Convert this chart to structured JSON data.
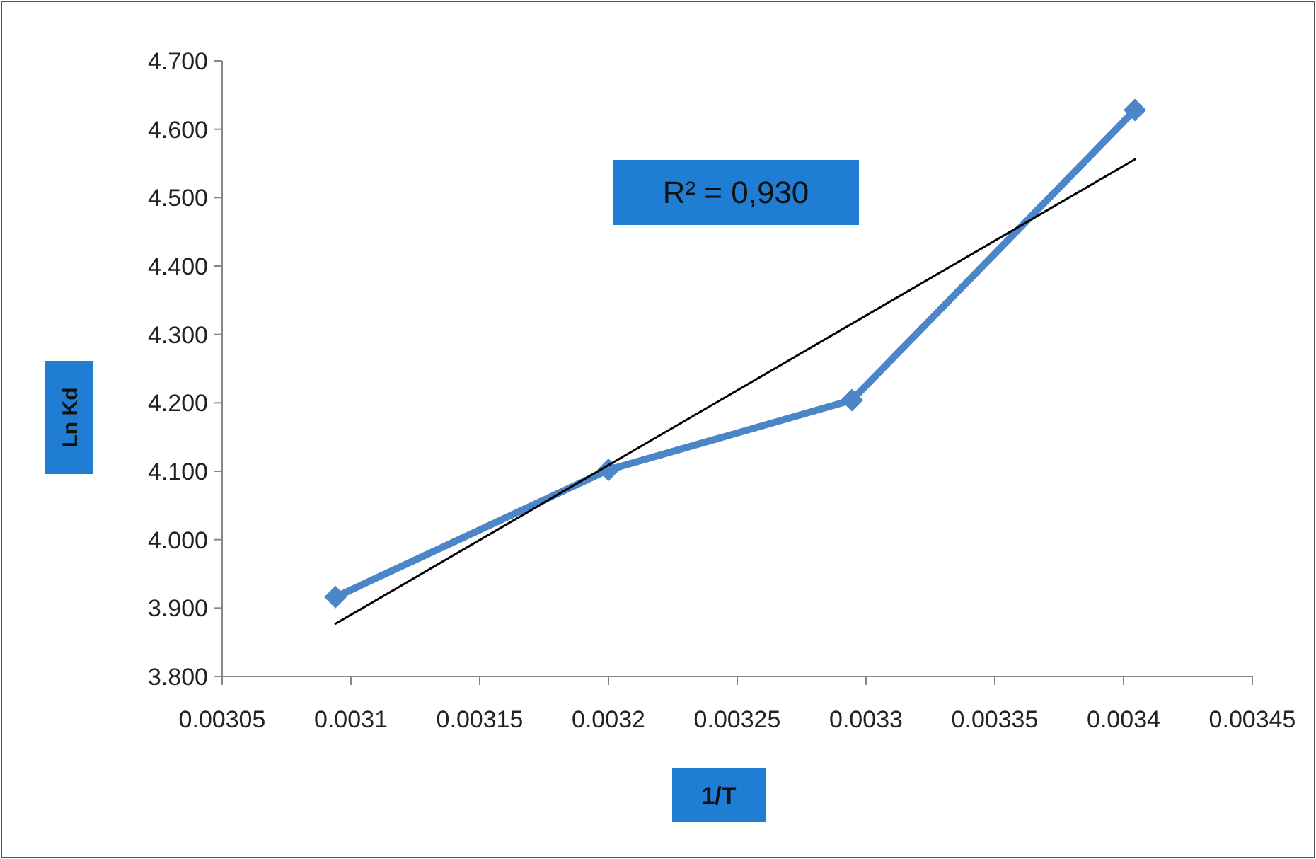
{
  "chart_data": {
    "type": "line",
    "xlabel": "1/T",
    "ylabel": "Ln Kd",
    "xlim": [
      0.00305,
      0.00345
    ],
    "xticks": [
      0.00305,
      0.0031,
      0.00315,
      0.0032,
      0.00325,
      0.0033,
      0.00335,
      0.0034,
      0.00345
    ],
    "ylim": [
      3.8,
      4.7
    ],
    "yticks": [
      {
        "value": 3.8,
        "label": "3.800"
      },
      {
        "value": 3.9,
        "label": "3.900"
      },
      {
        "value": 4.0,
        "label": "4.000"
      },
      {
        "value": 4.1,
        "label": "4.100"
      },
      {
        "value": 4.2,
        "label": "4.200"
      },
      {
        "value": 4.3,
        "label": "4.300"
      },
      {
        "value": 4.4,
        "label": "4.400"
      },
      {
        "value": 4.5,
        "label": "4.500"
      },
      {
        "value": 4.6,
        "label": "4.600"
      },
      {
        "value": 4.7,
        "label": "4.700"
      }
    ],
    "series": [
      {
        "color": "#4a86c8",
        "marker": "diamond",
        "x": [
          0.003094,
          0.0032,
          0.0032945,
          0.0034044
        ],
        "values": [
          3.916,
          4.102,
          4.204,
          4.628
        ]
      },
      {
        "color": "#000000",
        "marker": "none",
        "x": [
          0.003094,
          0.0034044
        ],
        "values": [
          3.877,
          4.556
        ]
      }
    ],
    "annotations": [
      "R² = 0,930"
    ],
    "grid": false,
    "line_style": "solid"
  }
}
